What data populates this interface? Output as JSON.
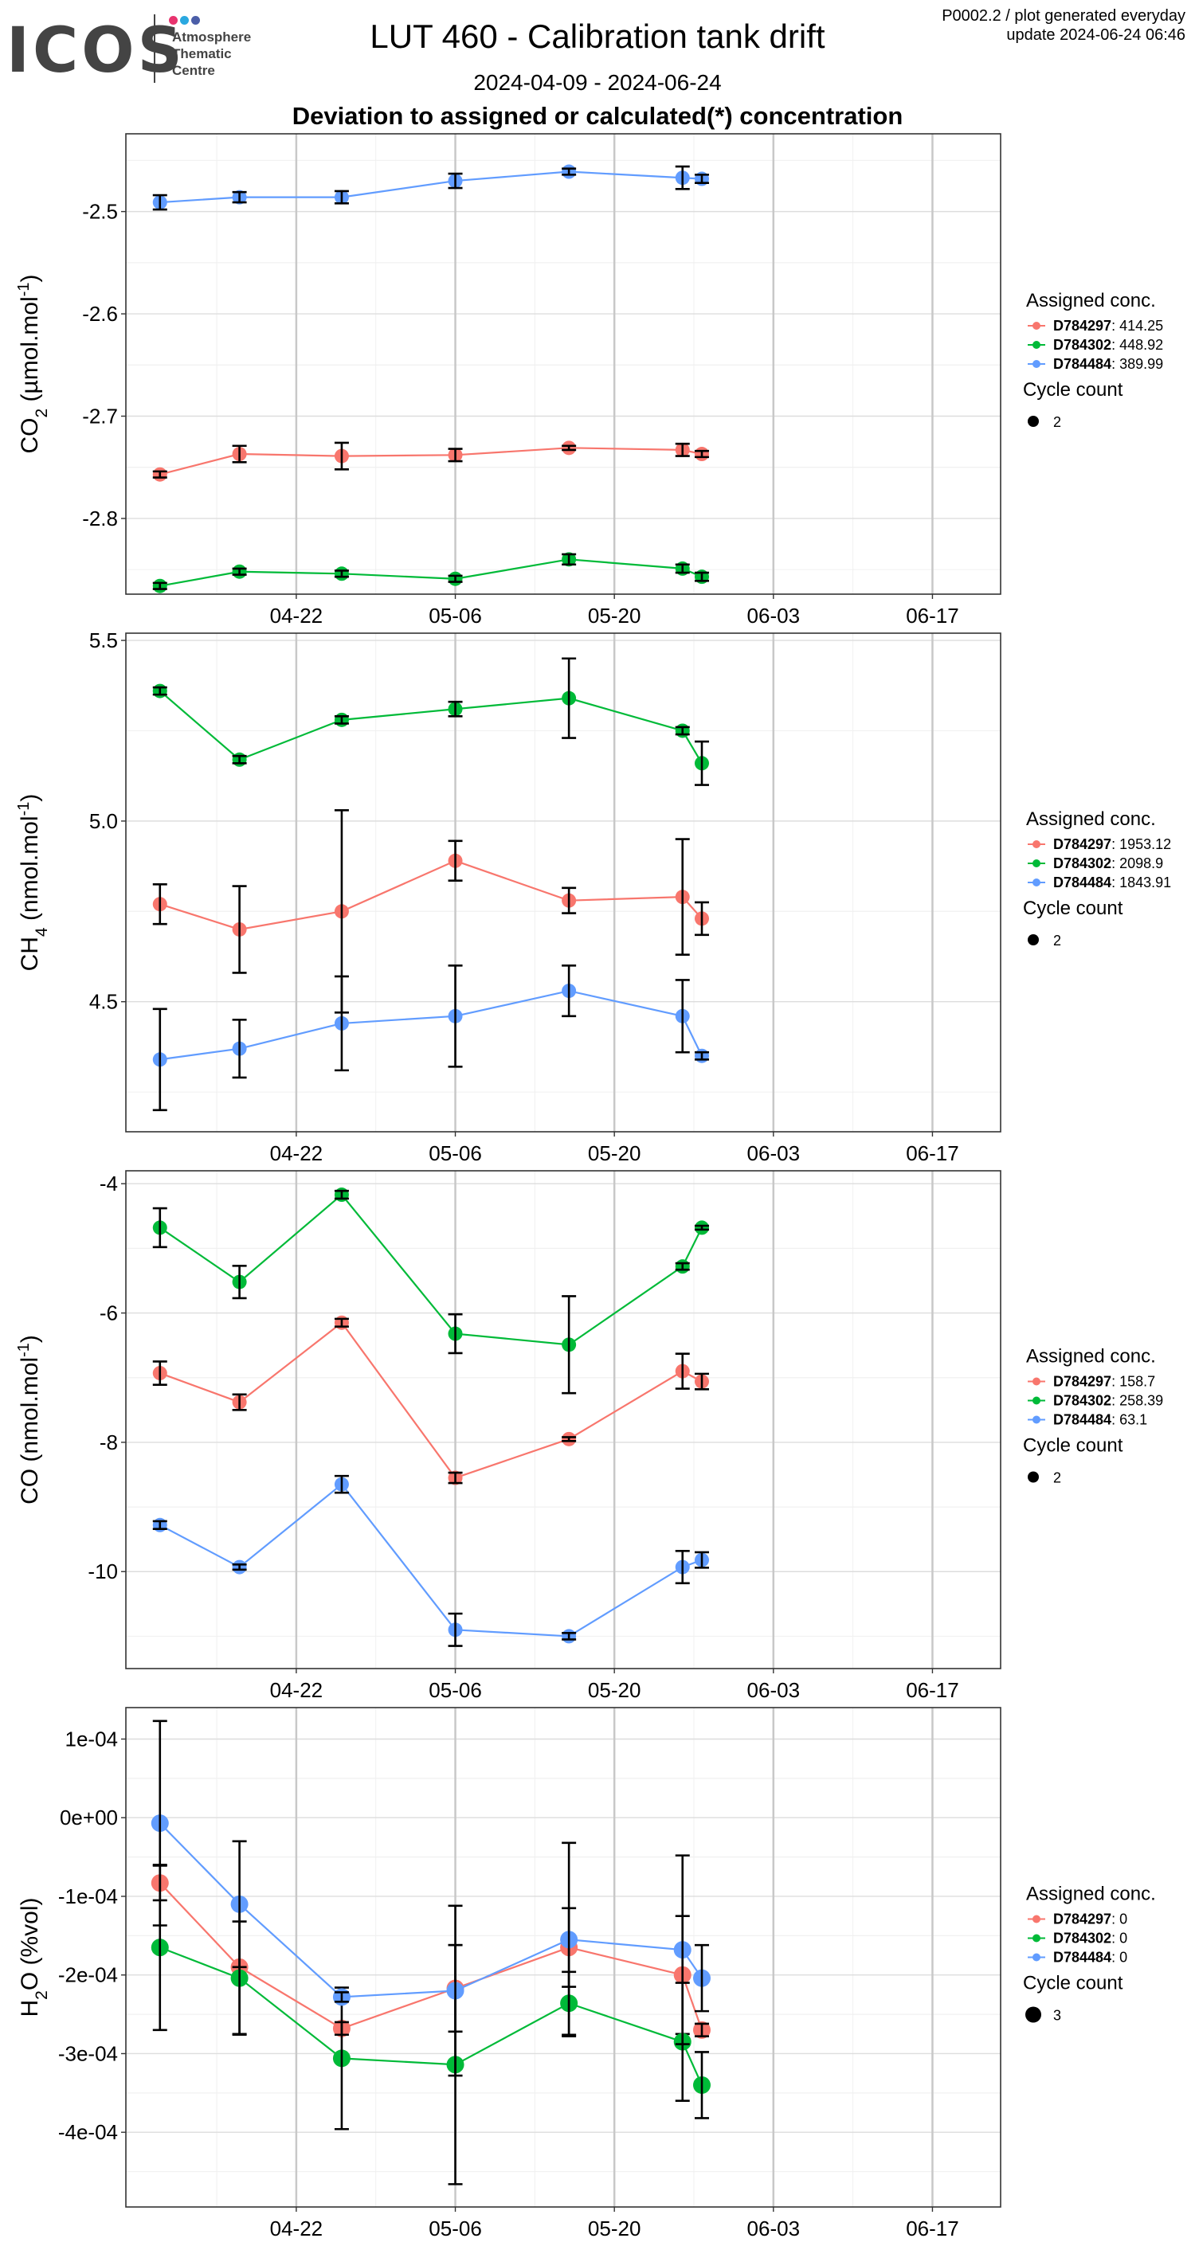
{
  "header": {
    "logo_word": "ICOS",
    "logo_lines": [
      "Atmosphere",
      "Thematic",
      "Centre"
    ],
    "title": "LUT 460 - Calibration tank drift",
    "date_range": "2024-04-09 - 2024-06-24",
    "heading": "Deviation to assigned or calculated(*) concentration",
    "meta_line1": "P0002.2 / plot generated everyday",
    "meta_line2": "update  2024-06-24 06:46"
  },
  "colors": {
    "D784297": "#F8766D",
    "D784302": "#00BA38",
    "D784484": "#619CFF",
    "logo_dots": [
      "#e8336e",
      "#2aa8e0",
      "#4b5ea8"
    ]
  },
  "chart_data": [
    {
      "type": "line",
      "ylabel_main": "CO",
      "ylabel_sub": "2",
      "ylabel_unit": " (µmol.mol",
      "ylim": [
        -2.874,
        -2.424
      ],
      "yticks": [
        -2.8,
        -2.7,
        -2.6,
        -2.5
      ],
      "ytick_labels": [
        "-2.8",
        "-2.7",
        "-2.6",
        "-2.5"
      ],
      "x_dates": [
        "2024-04-10",
        "2024-04-17",
        "2024-04-26",
        "2024-05-06",
        "2024-05-16",
        "2024-05-26",
        "2024-05-27"
      ],
      "xticks": [
        "04-22",
        "05-06",
        "05-20",
        "06-03",
        "06-17"
      ],
      "legend_title": "Assigned conc.",
      "legend_entries": [
        {
          "id": "D784297",
          "value": ": 414.25"
        },
        {
          "id": "D784302",
          "value": ": 448.92"
        },
        {
          "id": "D784484",
          "value": ": 389.99"
        }
      ],
      "size_title": "Cycle count",
      "size_value": "2",
      "series": [
        {
          "name": "D784297",
          "values": [
            -2.757,
            -2.737,
            -2.739,
            -2.738,
            -2.731,
            -2.733,
            -2.737
          ],
          "err": [
            0.003,
            0.008,
            0.013,
            0.006,
            0.002,
            0.006,
            0.003
          ]
        },
        {
          "name": "D784302",
          "values": [
            -2.866,
            -2.852,
            -2.854,
            -2.859,
            -2.84,
            -2.849,
            -2.857
          ],
          "err": [
            0.003,
            0.003,
            0.003,
            0.003,
            0.005,
            0.004,
            0.004
          ]
        },
        {
          "name": "D784484",
          "values": [
            -2.491,
            -2.486,
            -2.486,
            -2.47,
            -2.461,
            -2.467,
            -2.468
          ],
          "err": [
            0.007,
            0.005,
            0.006,
            0.007,
            0.003,
            0.011,
            0.004
          ]
        }
      ]
    },
    {
      "type": "line",
      "ylabel_main": "CH",
      "ylabel_sub": "4",
      "ylabel_unit": " (nmol.mol",
      "ylim": [
        4.14,
        5.52
      ],
      "yticks": [
        4.5,
        5.0,
        5.5
      ],
      "ytick_labels": [
        "4.5",
        "5.0",
        "5.5"
      ],
      "x_dates": [
        "2024-04-10",
        "2024-04-17",
        "2024-04-26",
        "2024-05-06",
        "2024-05-16",
        "2024-05-26",
        "2024-05-27"
      ],
      "xticks": [
        "04-22",
        "05-06",
        "05-20",
        "06-03",
        "06-17"
      ],
      "legend_title": "Assigned conc.",
      "legend_entries": [
        {
          "id": "D784297",
          "value": ": 1953.12"
        },
        {
          "id": "D784302",
          "value": ": 2098.9"
        },
        {
          "id": "D784484",
          "value": ": 1843.91"
        }
      ],
      "size_title": "Cycle count",
      "size_value": "2",
      "series": [
        {
          "name": "D784297",
          "values": [
            4.77,
            4.7,
            4.75,
            4.89,
            4.78,
            4.79,
            4.73
          ],
          "err": [
            0.055,
            0.12,
            0.28,
            0.055,
            0.035,
            0.16,
            0.045
          ]
        },
        {
          "name": "D784302",
          "values": [
            5.36,
            5.17,
            5.28,
            5.31,
            5.34,
            5.25,
            5.16
          ],
          "err": [
            0.01,
            0.01,
            0.01,
            0.02,
            0.11,
            0.01,
            0.06
          ]
        },
        {
          "name": "D784484",
          "values": [
            4.34,
            4.37,
            4.44,
            4.46,
            4.53,
            4.46,
            4.35
          ],
          "err": [
            0.14,
            0.08,
            0.13,
            0.14,
            0.07,
            0.1,
            0.01
          ]
        }
      ]
    },
    {
      "type": "line",
      "ylabel_main": "CO",
      "ylabel_sub": "",
      "ylabel_unit": " (nmol.mol",
      "ylim": [
        -11.5,
        -3.8
      ],
      "yticks": [
        -10,
        -8,
        -6,
        -4
      ],
      "ytick_labels": [
        "-10",
        "-8",
        "-6",
        "-4"
      ],
      "x_dates": [
        "2024-04-10",
        "2024-04-17",
        "2024-04-26",
        "2024-05-06",
        "2024-05-16",
        "2024-05-26",
        "2024-05-27"
      ],
      "xticks": [
        "04-22",
        "05-06",
        "05-20",
        "06-03",
        "06-17"
      ],
      "legend_title": "Assigned conc.",
      "legend_entries": [
        {
          "id": "D784297",
          "value": ": 158.7"
        },
        {
          "id": "D784302",
          "value": ": 258.39"
        },
        {
          "id": "D784484",
          "value": ": 63.1"
        }
      ],
      "size_title": "Cycle count",
      "size_value": "2",
      "series": [
        {
          "name": "D784297",
          "values": [
            -6.93,
            -7.38,
            -6.15,
            -8.55,
            -7.95,
            -6.9,
            -7.06
          ],
          "err": [
            0.18,
            0.12,
            0.06,
            0.08,
            0.03,
            0.27,
            0.12
          ]
        },
        {
          "name": "D784302",
          "values": [
            -4.68,
            -5.52,
            -4.17,
            -6.32,
            -6.49,
            -5.28,
            -4.68
          ],
          "err": [
            0.3,
            0.25,
            0.06,
            0.3,
            0.75,
            0.05,
            0.03
          ]
        },
        {
          "name": "D784484",
          "values": [
            -9.28,
            -9.93,
            -8.65,
            -10.9,
            -11.0,
            -9.93,
            -9.82
          ],
          "err": [
            0.06,
            0.04,
            0.13,
            0.25,
            0.05,
            0.25,
            0.12
          ]
        }
      ]
    },
    {
      "type": "line",
      "ylabel_main": "H",
      "ylabel_sub": "2",
      "ylabel_unit": "O (%vol)",
      "ylim": [
        -0.000495,
        0.00014
      ],
      "yticks": [
        -0.0004,
        -0.0003,
        -0.0002,
        -0.0001,
        0,
        0.0001
      ],
      "ytick_labels": [
        "-4e-04",
        "-3e-04",
        "-2e-04",
        "-1e-04",
        "0e+00",
        "1e-04"
      ],
      "x_dates": [
        "2024-04-10",
        "2024-04-17",
        "2024-04-26",
        "2024-05-06",
        "2024-05-16",
        "2024-05-26",
        "2024-05-27"
      ],
      "xticks": [
        "04-22",
        "05-06",
        "05-20",
        "06-03",
        "06-17"
      ],
      "legend_title": "Assigned conc.",
      "legend_entries": [
        {
          "id": "D784297",
          "value": ": 0"
        },
        {
          "id": "D784302",
          "value": ": 0"
        },
        {
          "id": "D784484",
          "value": ": 0"
        }
      ],
      "size_title": "Cycle count",
      "size_value": "3",
      "series": [
        {
          "name": "D784297",
          "values": [
            -8.3e-05,
            -0.00019,
            -0.000268,
            -0.000217,
            -0.000165,
            -0.0002,
            -0.00027
          ],
          "err": [
            2.2e-05,
            8.5e-05,
            8e-06,
            5.5e-05,
            5e-05,
            7.5e-05,
            8e-06
          ]
        },
        {
          "name": "D784302",
          "values": [
            -0.000165,
            -0.000204,
            -0.000306,
            -0.000314,
            -0.000236,
            -0.000285,
            -0.00034
          ],
          "err": [
            0.000105,
            7.2e-05,
            9e-05,
            0.000152,
            4e-05,
            7.5e-05,
            4.2e-05
          ]
        },
        {
          "name": "D784484",
          "values": [
            -7e-06,
            -0.00011,
            -0.000228,
            -0.00022,
            -0.000155,
            -0.000168,
            -0.000204
          ],
          "err": [
            0.00013,
            8e-05,
            6e-06,
            0.000108,
            0.000123,
            0.00012,
            4.2e-05
          ]
        }
      ]
    }
  ]
}
